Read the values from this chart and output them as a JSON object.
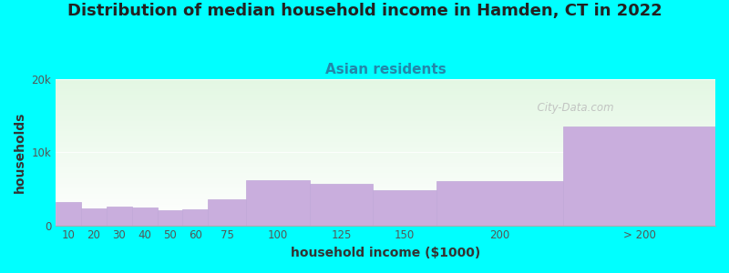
{
  "title": "Distribution of median household income in Hamden, CT in 2022",
  "subtitle": "Asian residents",
  "xlabel": "household income ($1000)",
  "ylabel": "households",
  "background_color": "#00FFFF",
  "bar_color": "#c9aedd",
  "bar_edge_color": "#c0a8d8",
  "categories": [
    "10",
    "20",
    "30",
    "40",
    "50",
    "60",
    "75",
    "100",
    "125",
    "150",
    "200",
    "> 200"
  ],
  "left_edges": [
    0,
    10,
    20,
    30,
    40,
    50,
    60,
    75,
    100,
    125,
    150,
    200
  ],
  "widths": [
    10,
    10,
    10,
    10,
    10,
    10,
    15,
    25,
    25,
    25,
    50,
    60
  ],
  "values": [
    3200,
    2300,
    2500,
    2400,
    2000,
    2200,
    3500,
    6200,
    5700,
    4800,
    6000,
    13500
  ],
  "ylim": [
    0,
    20000
  ],
  "yticks": [
    0,
    10000,
    20000
  ],
  "ytick_labels": [
    "0",
    "10k",
    "20k"
  ],
  "xtick_positions": [
    5,
    15,
    25,
    35,
    45,
    55,
    67.5,
    87.5,
    112.5,
    137.5,
    175,
    230
  ],
  "xtick_labels": [
    "10",
    "20",
    "30",
    "40",
    "50",
    "60",
    "75",
    "100",
    "125",
    "150",
    "200",
    "> 200"
  ],
  "watermark": "  City-Data.com",
  "title_fontsize": 13,
  "subtitle_fontsize": 11,
  "axis_label_fontsize": 10,
  "tick_fontsize": 8.5,
  "plot_xlim": [
    0,
    260
  ]
}
